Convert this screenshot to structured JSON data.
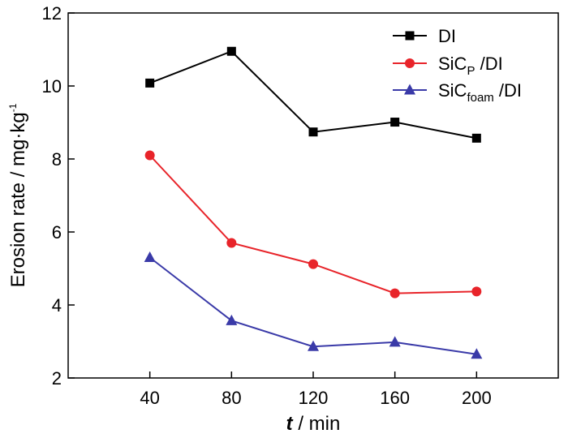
{
  "chart_data": {
    "type": "line",
    "x": [
      40,
      80,
      120,
      160,
      200
    ],
    "series": [
      {
        "name": "DI",
        "name_main": "DI",
        "name_sub": "",
        "name_suffix": "",
        "values": [
          10.08,
          10.95,
          8.74,
          9.01,
          8.57
        ],
        "color": "#000000",
        "marker": "square"
      },
      {
        "name": "SiCP /DI",
        "name_main": "SiC",
        "name_sub": "P",
        "name_suffix": " /DI",
        "values": [
          8.1,
          5.7,
          5.12,
          4.32,
          4.37
        ],
        "color": "#e8242a",
        "marker": "circle"
      },
      {
        "name": "SiCfoam /DI",
        "name_main": "SiC",
        "name_sub": "foam",
        "name_suffix": " /DI",
        "values": [
          5.3,
          3.57,
          2.86,
          2.98,
          2.65
        ],
        "color": "#3a3aa8",
        "marker": "triangle"
      }
    ],
    "xlabel_italic": "t",
    "xlabel_rest": " / min",
    "ylabel_main": "Erosion rate / mg·kg",
    "ylabel_sup": "-1",
    "xlim": [
      0,
      240
    ],
    "ylim": [
      2,
      12
    ],
    "xticks": [
      40,
      80,
      120,
      160,
      200
    ],
    "yticks": [
      2,
      4,
      6,
      8,
      10,
      12
    ],
    "grid": false,
    "legend_position": "top-right"
  }
}
